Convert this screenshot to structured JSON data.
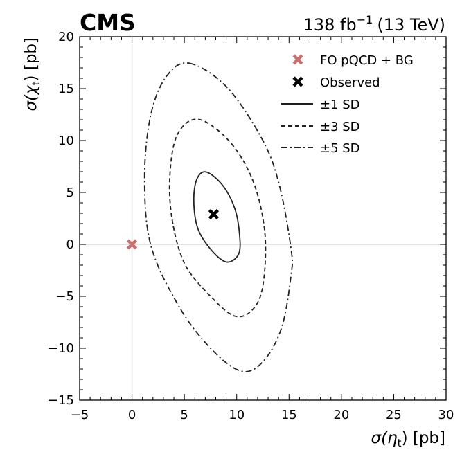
{
  "chart_data": {
    "type": "contour",
    "experiment_label": "CMS",
    "lumi_label": "138 fb",
    "lumi_exp": "−1",
    "energy_label": "(13 TeV)",
    "xlabel": {
      "main": "σ(η",
      "sub": "t",
      "tail": ") [pb]"
    },
    "ylabel": {
      "main": "σ(χ",
      "sub": "t",
      "tail": ") [pb]"
    },
    "xlim": [
      -5,
      30
    ],
    "ylim": [
      -15,
      20
    ],
    "xticks": [
      -5,
      0,
      5,
      10,
      15,
      20,
      25,
      30
    ],
    "yticks": [
      -15,
      -10,
      -5,
      0,
      5,
      10,
      15,
      20
    ],
    "xtick_labels": [
      "−5",
      "0",
      "5",
      "10",
      "15",
      "20",
      "25",
      "30"
    ],
    "ytick_labels": [
      "−15",
      "−10",
      "−5",
      "0",
      "5",
      "10",
      "15",
      "20"
    ],
    "reference_lines": {
      "x": 0,
      "y": 0,
      "color": "#d9d9d9"
    },
    "legend_position": "top-right",
    "points": [
      {
        "name": "FO pQCD + BG",
        "x": 0,
        "y": 0,
        "color": "#c87070",
        "marker": "X"
      },
      {
        "name": "Observed",
        "x": 7.8,
        "y": 2.9,
        "color": "#000000",
        "marker": "X"
      }
    ],
    "contours": [
      {
        "name": "±1 SD",
        "style": "solid",
        "points": [
          [
            7.1,
            6.97
          ],
          [
            8.65,
            5.7
          ],
          [
            9.8,
            3.5
          ],
          [
            10.26,
            1.1
          ],
          [
            10.2,
            -0.9
          ],
          [
            9.05,
            -1.7
          ],
          [
            7.6,
            -0.57
          ],
          [
            6.3,
            1.5
          ],
          [
            5.9,
            4.2
          ],
          [
            6.2,
            6.3
          ]
        ]
      },
      {
        "name": "±3 SD",
        "style": "dashed",
        "points": [
          [
            6.33,
            12.04
          ],
          [
            9.36,
            9.86
          ],
          [
            11.6,
            6
          ],
          [
            12.7,
            1
          ],
          [
            12.5,
            -4
          ],
          [
            11.5,
            -6.3
          ],
          [
            9.8,
            -6.9
          ],
          [
            7.5,
            -5
          ],
          [
            5.1,
            -2
          ],
          [
            3.9,
            2
          ],
          [
            3.6,
            6.3
          ],
          [
            4.3,
            10.5
          ]
        ]
      },
      {
        "name": "±5 SD",
        "style": "dashdot",
        "points": [
          [
            5.5,
            17.44
          ],
          [
            9.1,
            15.1
          ],
          [
            12.5,
            10
          ],
          [
            14.1,
            5.6
          ],
          [
            15.2,
            -0.5
          ],
          [
            15.2,
            -2.9
          ],
          [
            14.3,
            -8
          ],
          [
            12.5,
            -11.3
          ],
          [
            10.4,
            -12.2
          ],
          [
            7.5,
            -10
          ],
          [
            4.5,
            -6
          ],
          [
            1.8,
            -0.1
          ],
          [
            1.2,
            6.5
          ],
          [
            1.8,
            12.5
          ],
          [
            3.3,
            16.2
          ]
        ]
      }
    ]
  }
}
